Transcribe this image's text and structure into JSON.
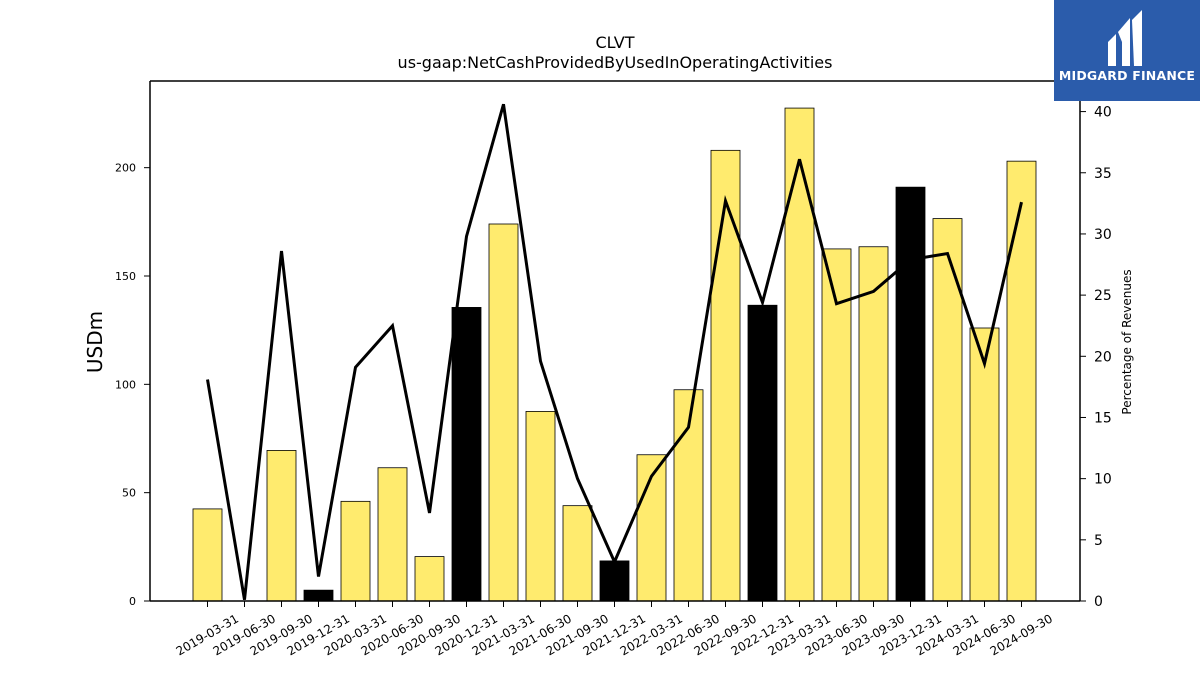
{
  "chart_data": {
    "type": "bar",
    "title": "CLVT",
    "subtitle": "us-gaap:NetCashProvidedByUsedInOperatingActivities",
    "ylabel": "USDm",
    "y2label": "Percentage of Revenues",
    "ylim": [
      0,
      240
    ],
    "y2lim": [
      0,
      42.5
    ],
    "yticks": [
      0,
      50,
      100,
      150,
      200
    ],
    "y2ticks": [
      0,
      5,
      10,
      15,
      20,
      25,
      30,
      35,
      40
    ],
    "categories": [
      "2019-03-31",
      "2019-06-30",
      "2019-09-30",
      "2019-12-31",
      "2020-03-31",
      "2020-06-30",
      "2020-09-30",
      "2020-12-31",
      "2021-03-31",
      "2021-06-30",
      "2021-09-30",
      "2021-12-31",
      "2022-03-31",
      "2022-06-30",
      "2022-09-30",
      "2022-12-31",
      "2023-03-31",
      "2023-06-30",
      "2023-09-30",
      "2023-12-31",
      "2024-03-31",
      "2024-06-30",
      "2024-09-30"
    ],
    "series": [
      {
        "values": [
          42.5,
          0,
          69.5,
          5,
          46,
          61.5,
          20.5,
          135.5,
          174,
          87.5,
          44,
          18.5,
          67.5,
          97.5,
          208,
          136.5,
          227.5,
          162.5,
          163.5,
          191,
          176.5,
          126,
          203
        ],
        "highlight": [
          false,
          false,
          false,
          true,
          false,
          false,
          false,
          true,
          false,
          false,
          false,
          true,
          false,
          false,
          false,
          true,
          false,
          false,
          false,
          true,
          false,
          false,
          false
        ],
        "color": "#ffeb6e",
        "highlight_color": "#000000"
      },
      {
        "type": "line",
        "axis": "right",
        "color": "#000000",
        "values": [
          18.1,
          0.1,
          28.6,
          2.0,
          19.1,
          22.5,
          7.2,
          29.8,
          40.6,
          19.6,
          10.0,
          3.2,
          10.2,
          14.2,
          32.7,
          24.4,
          36.1,
          24.3,
          25.3,
          27.9,
          28.4,
          19.4,
          32.6
        ]
      }
    ]
  },
  "logo": {
    "text": "MIDGARD FINANCE",
    "color": "#2b5cab"
  }
}
